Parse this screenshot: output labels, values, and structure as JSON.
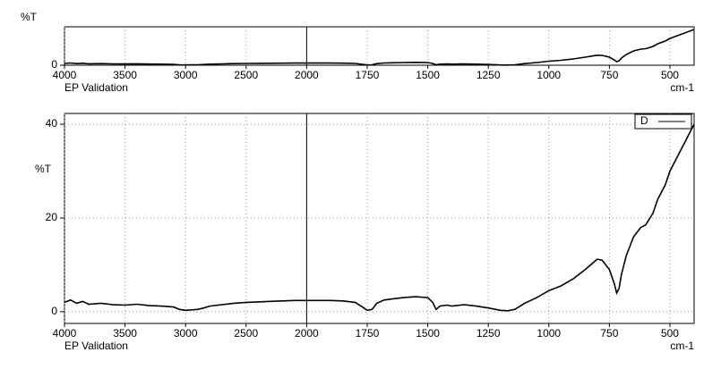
{
  "chart_data": [
    {
      "type": "line",
      "ylabel": "%T",
      "xlabel": "cm-1",
      "caption": "EP Validation",
      "xlim": [
        4000,
        400
      ],
      "xticks": [
        4000,
        3500,
        3000,
        2500,
        2000,
        1750,
        1500,
        1250,
        1000,
        750,
        500
      ],
      "ylim": [
        0,
        43
      ],
      "yticks": [
        0
      ],
      "grid": true,
      "x_break": 2000,
      "color": "#000000",
      "x": [
        4000,
        3950,
        3900,
        3850,
        3800,
        3700,
        3600,
        3500,
        3400,
        3300,
        3200,
        3100,
        3050,
        3000,
        2950,
        2900,
        2850,
        2800,
        2700,
        2600,
        2500,
        2400,
        2300,
        2200,
        2100,
        2000,
        1900,
        1850,
        1800,
        1770,
        1750,
        1730,
        1710,
        1680,
        1650,
        1600,
        1550,
        1500,
        1480,
        1465,
        1450,
        1420,
        1400,
        1350,
        1300,
        1250,
        1200,
        1170,
        1140,
        1100,
        1050,
        1000,
        950,
        900,
        850,
        800,
        780,
        750,
        730,
        720,
        710,
        700,
        680,
        650,
        620,
        600,
        570,
        550,
        520,
        500,
        470,
        450,
        430,
        410,
        400
      ],
      "values": [
        2,
        2.5,
        1.8,
        2.2,
        1.6,
        1.8,
        1.5,
        1.4,
        1.6,
        1.3,
        1.2,
        1,
        0.5,
        0.3,
        0.4,
        0.5,
        0.8,
        1.2,
        1.5,
        1.8,
        2,
        2.1,
        2.2,
        2.3,
        2.4,
        2.4,
        2.4,
        2.3,
        2,
        1,
        0.3,
        0.5,
        1.8,
        2.5,
        2.7,
        3,
        3.2,
        3,
        2,
        0.5,
        1.2,
        1.4,
        1.2,
        1.5,
        1.2,
        0.8,
        0.3,
        0.2,
        0.5,
        1.8,
        3,
        4.5,
        5.5,
        7,
        9,
        11.2,
        11,
        9,
        6,
        4,
        5,
        8,
        12,
        16,
        18,
        18.5,
        21,
        24,
        27,
        30,
        33,
        35,
        37,
        39,
        40
      ]
    },
    {
      "type": "line",
      "ylabel": "%T",
      "xlabel": "cm-1",
      "caption": "EP Validation",
      "xlim": [
        4000,
        400
      ],
      "xticks": [
        4000,
        3500,
        3000,
        2500,
        2000,
        1750,
        1500,
        1250,
        1000,
        750,
        500
      ],
      "ylim": [
        -2.5,
        42.3
      ],
      "yticks": [
        0,
        20,
        40
      ],
      "grid": true,
      "x_break": 2000,
      "legend": "upper right",
      "x": [
        4000,
        3950,
        3900,
        3850,
        3800,
        3700,
        3600,
        3500,
        3400,
        3300,
        3200,
        3100,
        3050,
        3000,
        2950,
        2900,
        2850,
        2800,
        2700,
        2600,
        2500,
        2400,
        2300,
        2200,
        2100,
        2000,
        1900,
        1850,
        1800,
        1770,
        1750,
        1730,
        1710,
        1680,
        1650,
        1600,
        1550,
        1500,
        1480,
        1465,
        1450,
        1420,
        1400,
        1350,
        1300,
        1250,
        1200,
        1170,
        1140,
        1100,
        1050,
        1000,
        950,
        900,
        850,
        800,
        780,
        750,
        730,
        720,
        710,
        700,
        680,
        650,
        620,
        600,
        570,
        550,
        520,
        500,
        470,
        450,
        430,
        410,
        400
      ],
      "series": [
        {
          "name": "D",
          "color": "#000000",
          "values": [
            2,
            2.5,
            1.8,
            2.2,
            1.6,
            1.8,
            1.5,
            1.4,
            1.6,
            1.3,
            1.2,
            1,
            0.5,
            0.3,
            0.4,
            0.5,
            0.8,
            1.2,
            1.5,
            1.8,
            2,
            2.1,
            2.2,
            2.3,
            2.4,
            2.4,
            2.4,
            2.3,
            2,
            1,
            0.3,
            0.5,
            1.8,
            2.5,
            2.7,
            3,
            3.2,
            3,
            2,
            0.5,
            1.2,
            1.4,
            1.2,
            1.5,
            1.2,
            0.8,
            0.3,
            0.2,
            0.5,
            1.8,
            3,
            4.5,
            5.5,
            7,
            9,
            11.2,
            11,
            9,
            6,
            4,
            5,
            8,
            12,
            16,
            18,
            18.5,
            21,
            24,
            27,
            30,
            33,
            35,
            37,
            39,
            40
          ]
        }
      ]
    }
  ]
}
